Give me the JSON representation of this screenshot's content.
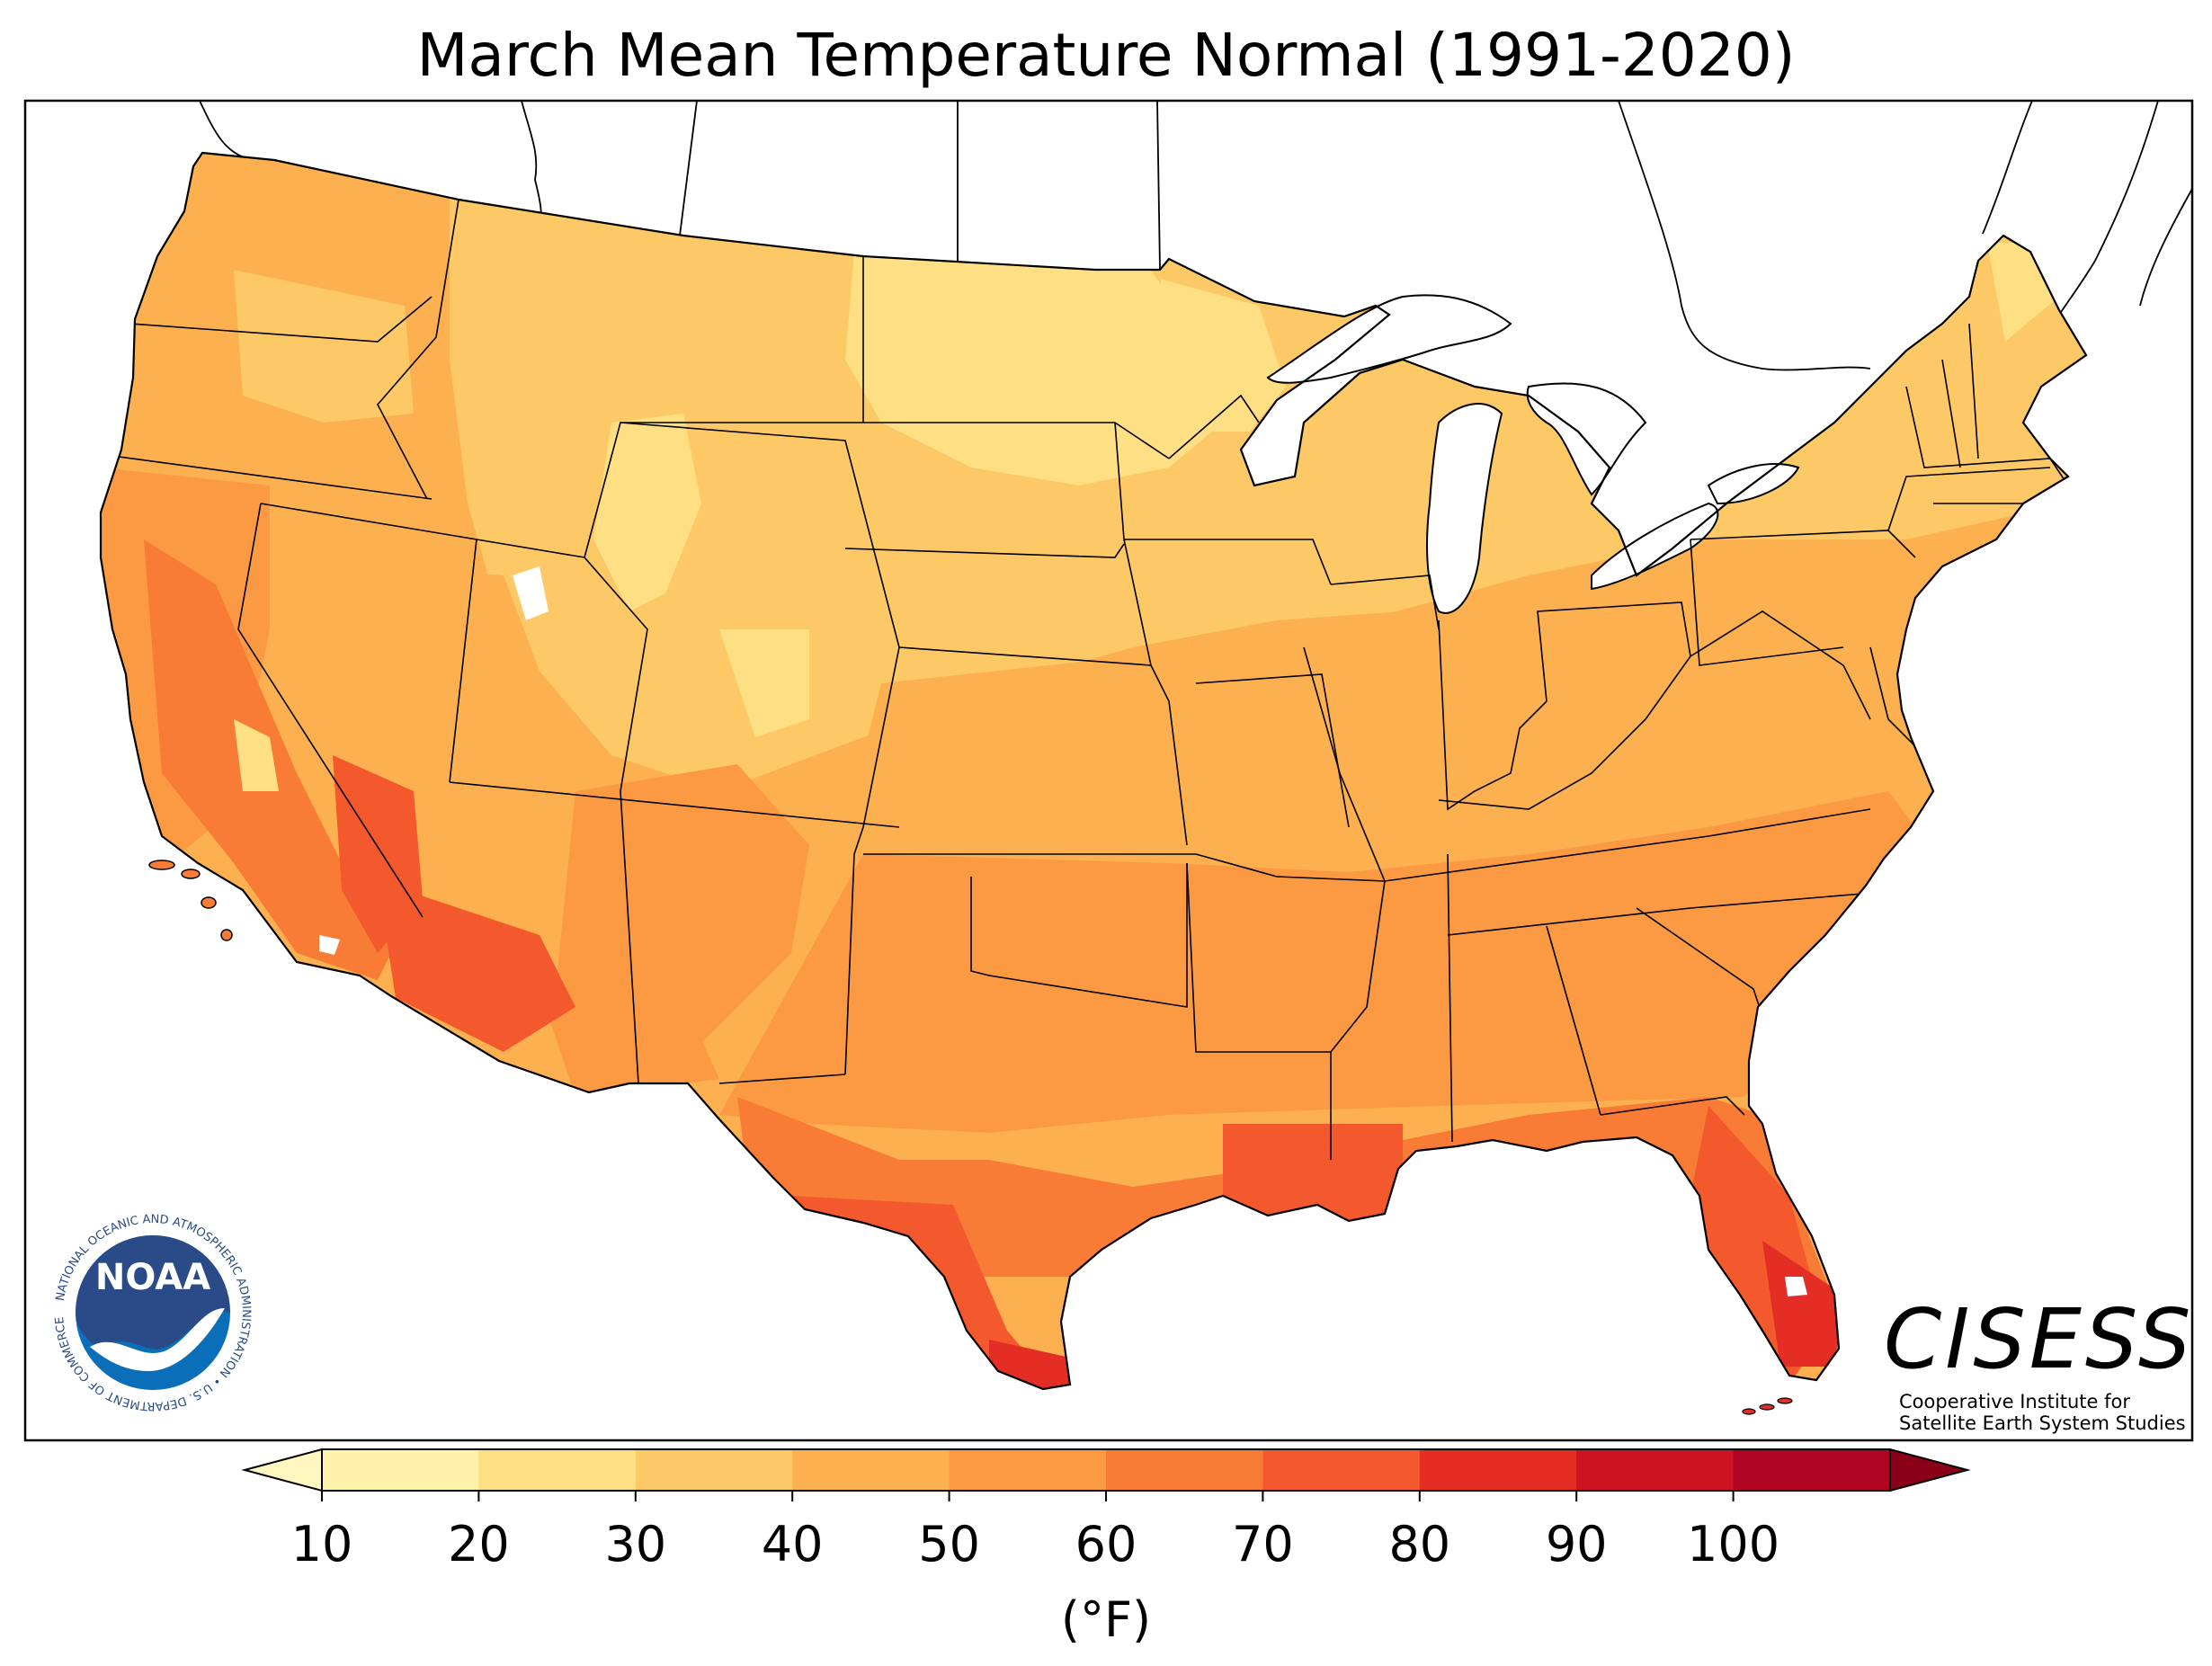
{
  "title": "March Mean Temperature Normal (1991-2020)",
  "colorbar": {
    "ticks": [
      "10",
      "20",
      "30",
      "40",
      "50",
      "60",
      "70",
      "80",
      "90",
      "100"
    ],
    "unit": "(°F)",
    "colors": [
      "#fff2aa",
      "#fedf84",
      "#fdc866",
      "#fcb050",
      "#fb9a43",
      "#f87c36",
      "#f3592c",
      "#e42d25",
      "#cc1322",
      "#b00423"
    ],
    "under_color": "#fff6c0",
    "over_color": "#8a0018"
  },
  "logos": {
    "noaa": {
      "name": "NOAA",
      "ring_text": "NATIONAL OCEANIC AND ATMOSPHERIC ADMINISTRATION • U.S. DEPARTMENT OF COMMERCE"
    },
    "cisess": {
      "name": "CISESS",
      "line1": "Cooperative Institute for",
      "line2": "Satellite Earth System Studies"
    }
  },
  "chart_data": {
    "type": "heatmap",
    "title": "March Mean Temperature Normal (1991-2020)",
    "colorbar_min": 10,
    "colorbar_max": 100,
    "colorbar_step": 10,
    "unit": "(°F)",
    "extend": "both",
    "region": "Contiguous United States"
  }
}
